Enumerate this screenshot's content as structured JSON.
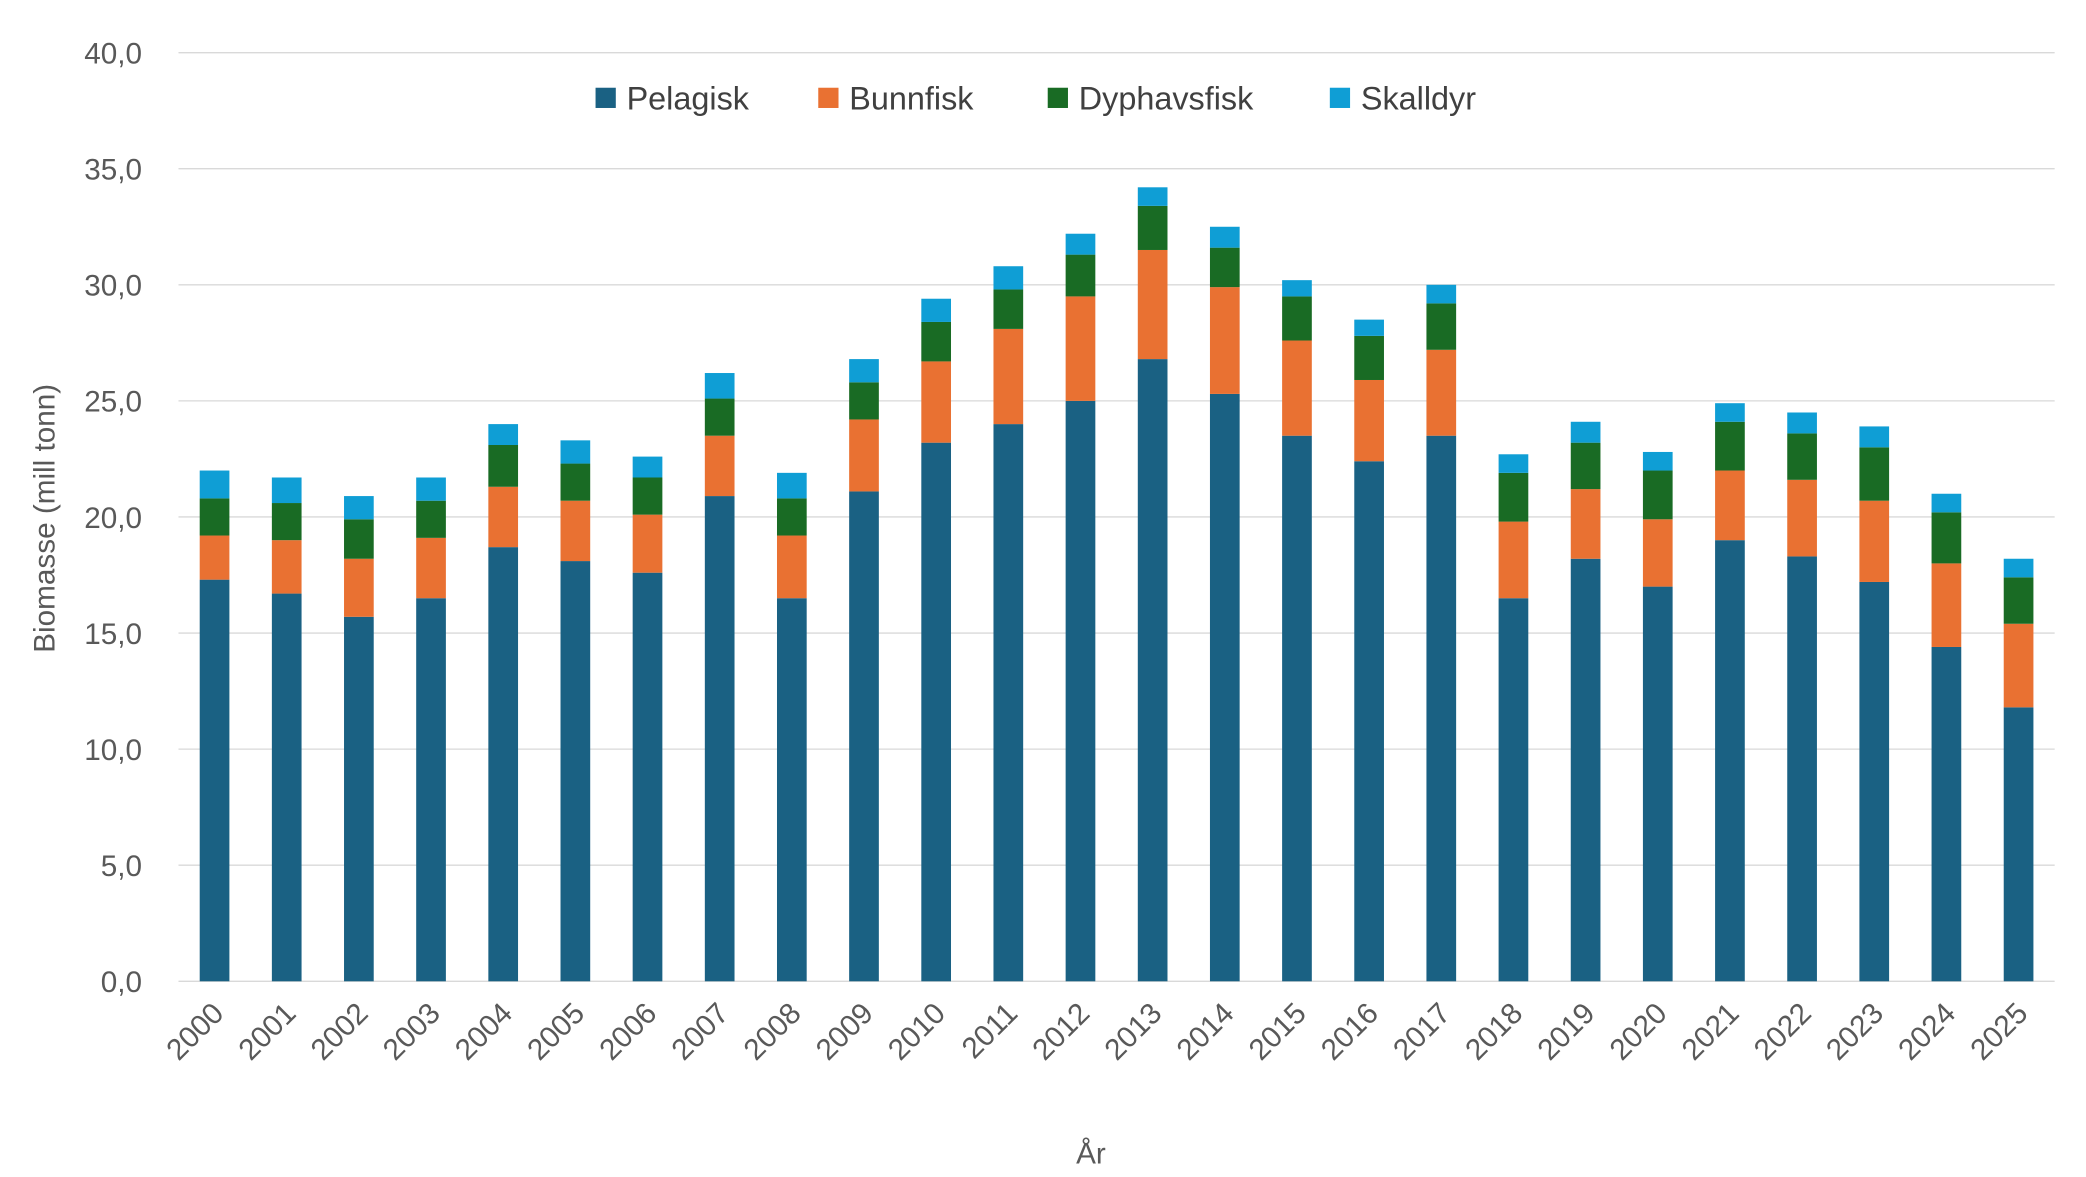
{
  "chart_data": {
    "type": "bar",
    "stacked": true,
    "xlabel": "År",
    "ylabel": "Biomasse (mill tonn)",
    "ylim": [
      0,
      40
    ],
    "yticks": [
      "0,0",
      "5,0",
      "10,0",
      "15,0",
      "20,0",
      "25,0",
      "30,0",
      "35,0",
      "40,0"
    ],
    "grid": true,
    "legend_position": "top",
    "categories": [
      "2000",
      "2001",
      "2002",
      "2003",
      "2004",
      "2005",
      "2006",
      "2007",
      "2008",
      "2009",
      "2010",
      "2011",
      "2012",
      "2013",
      "2014",
      "2015",
      "2016",
      "2017",
      "2018",
      "2019",
      "2020",
      "2021",
      "2022",
      "2023",
      "2024",
      "2025"
    ],
    "series": [
      {
        "name": "Pelagisk",
        "color": "#1a6183",
        "values": [
          17.3,
          16.7,
          15.7,
          16.5,
          18.7,
          18.1,
          17.6,
          20.9,
          16.5,
          21.1,
          23.2,
          24.0,
          25.0,
          26.8,
          25.3,
          23.5,
          22.4,
          23.5,
          16.5,
          18.2,
          17.0,
          19.0,
          18.3,
          17.2,
          14.4,
          11.8
        ]
      },
      {
        "name": "Bunnfisk",
        "color": "#e97132",
        "values": [
          1.9,
          2.3,
          2.5,
          2.6,
          2.6,
          2.6,
          2.5,
          2.6,
          2.7,
          3.1,
          3.5,
          4.1,
          4.5,
          4.7,
          4.6,
          4.1,
          3.5,
          3.7,
          3.3,
          3.0,
          2.9,
          3.0,
          3.3,
          3.5,
          3.6,
          3.6
        ]
      },
      {
        "name": "Dyphavsfisk",
        "color": "#196b24",
        "values": [
          1.6,
          1.6,
          1.7,
          1.6,
          1.8,
          1.6,
          1.6,
          1.6,
          1.6,
          1.6,
          1.7,
          1.7,
          1.8,
          1.9,
          1.7,
          1.9,
          1.9,
          2.0,
          2.1,
          2.0,
          2.1,
          2.1,
          2.0,
          2.3,
          2.2,
          2.0
        ]
      },
      {
        "name": "Skalldyr",
        "color": "#0f9ed5",
        "values": [
          1.2,
          1.1,
          1.0,
          1.0,
          0.9,
          1.0,
          0.9,
          1.1,
          1.1,
          1.0,
          1.0,
          1.0,
          0.9,
          0.8,
          0.9,
          0.7,
          0.7,
          0.8,
          0.8,
          0.9,
          0.8,
          0.8,
          0.9,
          0.9,
          0.8,
          0.8
        ]
      }
    ]
  }
}
